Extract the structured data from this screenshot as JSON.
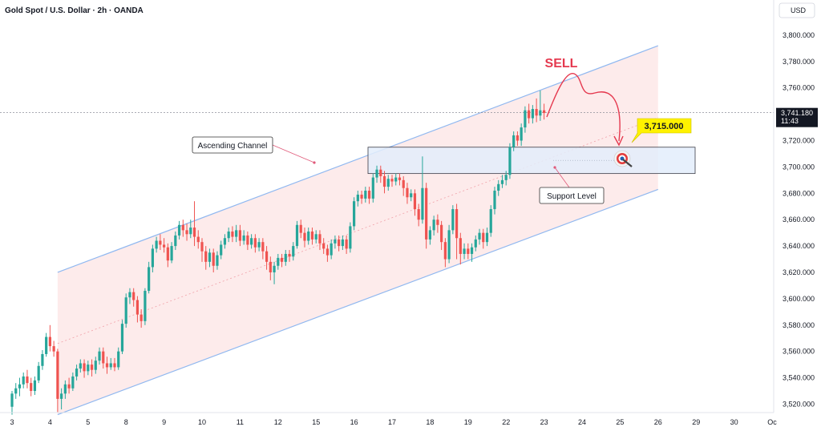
{
  "header": {
    "symbol_title": "Gold Spot / U.S. Dollar · 2h · OANDA",
    "currency": "USD"
  },
  "price_tag": {
    "price": "3,741.180",
    "countdown": "11:43"
  },
  "annotations": {
    "sell_label": "SELL",
    "target_label": "3,715.000",
    "channel_label": "Ascending Channel",
    "support_label": "Support Level"
  },
  "colors": {
    "up": "#26a69a",
    "down": "#ef5350",
    "channel_line": "#90b8f0",
    "channel_fill": "#fde8e8",
    "support_fill": "#e3edfb",
    "sell": "#e5394f",
    "target_bg": "#fff200"
  },
  "chart_data": {
    "type": "candlestick",
    "title": "Gold Spot / U.S. Dollar · 2h · OANDA",
    "ylabel": "USD",
    "ylim": [
      3510,
      3810
    ],
    "y_ticks": [
      3520,
      3540,
      3560,
      3580,
      3600,
      3620,
      3640,
      3660,
      3680,
      3700,
      3720,
      3740,
      3760,
      3780,
      3800
    ],
    "y_tick_labels": [
      "3,520.000",
      "3,540.000",
      "3,560.000",
      "3,580.000",
      "3,600.000",
      "3,620.000",
      "3,640.000",
      "3,660.000",
      "3,680.000",
      "3,700.000",
      "3,720.000",
      "3,740.000",
      "3,760.000",
      "3,780.000",
      "3,800.000"
    ],
    "x_ticks": [
      {
        "label": "3",
        "t": 0
      },
      {
        "label": "4",
        "t": 1
      },
      {
        "label": "5",
        "t": 2
      },
      {
        "label": "8",
        "t": 3
      },
      {
        "label": "9",
        "t": 4
      },
      {
        "label": "10",
        "t": 5
      },
      {
        "label": "11",
        "t": 6
      },
      {
        "label": "12",
        "t": 7
      },
      {
        "label": "15",
        "t": 8
      },
      {
        "label": "16",
        "t": 9
      },
      {
        "label": "17",
        "t": 10
      },
      {
        "label": "18",
        "t": 11
      },
      {
        "label": "19",
        "t": 12
      },
      {
        "label": "22",
        "t": 13
      },
      {
        "label": "23",
        "t": 14
      },
      {
        "label": "24",
        "t": 15
      },
      {
        "label": "25",
        "t": 16
      },
      {
        "label": "26",
        "t": 17
      },
      {
        "label": "29",
        "t": 18
      },
      {
        "label": "30",
        "t": 19
      },
      {
        "label": "Oc",
        "t": 20
      }
    ],
    "current_price": 3741.18,
    "target_price": 3715.0,
    "support_zone": [
      3695,
      3715
    ],
    "channel": {
      "upper": [
        {
          "t": 1.2,
          "y": 3620
        },
        {
          "t": 17,
          "y": 3792
        }
      ],
      "lower": [
        {
          "t": 1.2,
          "y": 3512
        },
        {
          "t": 17,
          "y": 3683
        }
      ]
    },
    "candles": [
      [
        0.0,
        3518,
        3528,
        3512,
        3530
      ],
      [
        0.1,
        3528,
        3532,
        3524,
        3536
      ],
      [
        0.2,
        3532,
        3535,
        3526,
        3540
      ],
      [
        0.3,
        3535,
        3541,
        3532,
        3544
      ],
      [
        0.4,
        3541,
        3536,
        3532,
        3546
      ],
      [
        0.5,
        3536,
        3530,
        3526,
        3540
      ],
      [
        0.6,
        3530,
        3538,
        3527,
        3541
      ],
      [
        0.7,
        3538,
        3549,
        3536,
        3552
      ],
      [
        0.8,
        3549,
        3558,
        3546,
        3561
      ],
      [
        0.9,
        3558,
        3571,
        3556,
        3574
      ],
      [
        1.0,
        3571,
        3564,
        3560,
        3580
      ],
      [
        1.1,
        3564,
        3560,
        3556,
        3568
      ],
      [
        1.2,
        3560,
        3524,
        3514,
        3562
      ],
      [
        1.3,
        3524,
        3528,
        3516,
        3532
      ],
      [
        1.4,
        3528,
        3535,
        3524,
        3538
      ],
      [
        1.5,
        3535,
        3532,
        3528,
        3540
      ],
      [
        1.6,
        3532,
        3541,
        3530,
        3544
      ],
      [
        1.7,
        3541,
        3547,
        3538,
        3550
      ],
      [
        1.8,
        3547,
        3551,
        3544,
        3554
      ],
      [
        1.9,
        3551,
        3545,
        3540,
        3554
      ],
      [
        2.0,
        3545,
        3550,
        3542,
        3553
      ],
      [
        2.1,
        3550,
        3546,
        3541,
        3554
      ],
      [
        2.2,
        3546,
        3553,
        3543,
        3556
      ],
      [
        2.3,
        3553,
        3560,
        3550,
        3563
      ],
      [
        2.4,
        3560,
        3551,
        3547,
        3563
      ],
      [
        2.5,
        3551,
        3548,
        3543,
        3556
      ],
      [
        2.6,
        3548,
        3551,
        3546,
        3555
      ],
      [
        2.7,
        3551,
        3548,
        3545,
        3555
      ],
      [
        2.8,
        3548,
        3560,
        3546,
        3563
      ],
      [
        2.9,
        3560,
        3581,
        3558,
        3584
      ],
      [
        3.0,
        3581,
        3601,
        3578,
        3604
      ],
      [
        3.1,
        3601,
        3605,
        3596,
        3608
      ],
      [
        3.2,
        3605,
        3599,
        3594,
        3608
      ],
      [
        3.3,
        3599,
        3588,
        3582,
        3602
      ],
      [
        3.4,
        3588,
        3583,
        3578,
        3592
      ],
      [
        3.5,
        3583,
        3606,
        3580,
        3608
      ],
      [
        3.6,
        3606,
        3624,
        3604,
        3628
      ],
      [
        3.7,
        3624,
        3638,
        3620,
        3641
      ],
      [
        3.8,
        3638,
        3644,
        3635,
        3647
      ],
      [
        3.9,
        3644,
        3641,
        3637,
        3649
      ],
      [
        4.0,
        3641,
        3639,
        3635,
        3646
      ],
      [
        4.1,
        3639,
        3629,
        3624,
        3642
      ],
      [
        4.2,
        3629,
        3640,
        3627,
        3643
      ],
      [
        4.3,
        3640,
        3648,
        3637,
        3651
      ],
      [
        4.4,
        3648,
        3656,
        3645,
        3659
      ],
      [
        4.5,
        3656,
        3652,
        3647,
        3660
      ],
      [
        4.6,
        3652,
        3649,
        3644,
        3657
      ],
      [
        4.7,
        3649,
        3654,
        3646,
        3660
      ],
      [
        4.8,
        3654,
        3647,
        3640,
        3674
      ],
      [
        4.9,
        3647,
        3643,
        3638,
        3652
      ],
      [
        5.0,
        3643,
        3636,
        3628,
        3646
      ],
      [
        5.1,
        3636,
        3628,
        3622,
        3640
      ],
      [
        5.2,
        3628,
        3635,
        3624,
        3638
      ],
      [
        5.3,
        3635,
        3625,
        3620,
        3638
      ],
      [
        5.4,
        3625,
        3633,
        3622,
        3636
      ],
      [
        5.5,
        3633,
        3641,
        3630,
        3644
      ],
      [
        5.6,
        3641,
        3646,
        3638,
        3649
      ],
      [
        5.7,
        3646,
        3651,
        3643,
        3654
      ],
      [
        5.8,
        3651,
        3647,
        3643,
        3655
      ],
      [
        5.9,
        3647,
        3652,
        3643,
        3656
      ],
      [
        6.0,
        3652,
        3644,
        3640,
        3656
      ],
      [
        6.1,
        3644,
        3648,
        3641,
        3652
      ],
      [
        6.2,
        3648,
        3641,
        3637,
        3651
      ],
      [
        6.3,
        3641,
        3646,
        3638,
        3649
      ],
      [
        6.4,
        3646,
        3639,
        3635,
        3649
      ],
      [
        6.5,
        3639,
        3643,
        3636,
        3646
      ],
      [
        6.6,
        3643,
        3636,
        3630,
        3646
      ],
      [
        6.7,
        3636,
        3628,
        3622,
        3640
      ],
      [
        6.8,
        3628,
        3620,
        3614,
        3632
      ],
      [
        6.9,
        3620,
        3625,
        3611,
        3628
      ],
      [
        7.0,
        3625,
        3631,
        3622,
        3634
      ],
      [
        7.1,
        3631,
        3628,
        3624,
        3634
      ],
      [
        7.2,
        3628,
        3634,
        3625,
        3637
      ],
      [
        7.3,
        3634,
        3632,
        3628,
        3637
      ],
      [
        7.4,
        3632,
        3640,
        3629,
        3643
      ],
      [
        7.5,
        3640,
        3656,
        3638,
        3659
      ],
      [
        7.6,
        3656,
        3650,
        3646,
        3660
      ],
      [
        7.7,
        3650,
        3644,
        3639,
        3654
      ],
      [
        7.8,
        3644,
        3651,
        3641,
        3654
      ],
      [
        7.9,
        3651,
        3645,
        3641,
        3654
      ],
      [
        8.0,
        3645,
        3649,
        3642,
        3652
      ],
      [
        8.1,
        3649,
        3642,
        3637,
        3652
      ],
      [
        8.2,
        3642,
        3638,
        3634,
        3646
      ],
      [
        8.3,
        3638,
        3633,
        3628,
        3641
      ],
      [
        8.4,
        3633,
        3642,
        3630,
        3645
      ],
      [
        8.5,
        3642,
        3645,
        3638,
        3648
      ],
      [
        8.6,
        3645,
        3640,
        3636,
        3648
      ],
      [
        8.7,
        3640,
        3645,
        3637,
        3648
      ],
      [
        8.8,
        3645,
        3638,
        3634,
        3648
      ],
      [
        8.9,
        3638,
        3655,
        3635,
        3658
      ],
      [
        9.0,
        3655,
        3674,
        3652,
        3677
      ],
      [
        9.1,
        3674,
        3679,
        3670,
        3682
      ],
      [
        9.2,
        3679,
        3676,
        3672,
        3682
      ],
      [
        9.3,
        3676,
        3682,
        3673,
        3685
      ],
      [
        9.4,
        3682,
        3676,
        3672,
        3685
      ],
      [
        9.5,
        3676,
        3692,
        3673,
        3695
      ],
      [
        9.6,
        3692,
        3698,
        3688,
        3701
      ],
      [
        9.7,
        3698,
        3693,
        3688,
        3701
      ],
      [
        9.8,
        3693,
        3685,
        3680,
        3697
      ],
      [
        9.9,
        3685,
        3691,
        3682,
        3694
      ],
      [
        10.0,
        3691,
        3689,
        3685,
        3694
      ],
      [
        10.1,
        3689,
        3692,
        3686,
        3695
      ],
      [
        10.2,
        3692,
        3690,
        3686,
        3695
      ],
      [
        10.3,
        3690,
        3684,
        3678,
        3693
      ],
      [
        10.4,
        3684,
        3677,
        3672,
        3688
      ],
      [
        10.5,
        3677,
        3680,
        3674,
        3683
      ],
      [
        10.6,
        3680,
        3668,
        3663,
        3683
      ],
      [
        10.7,
        3668,
        3660,
        3655,
        3672
      ],
      [
        10.8,
        3660,
        3684,
        3657,
        3708
      ],
      [
        10.9,
        3684,
        3645,
        3638,
        3688
      ],
      [
        11.0,
        3645,
        3652,
        3641,
        3655
      ],
      [
        11.1,
        3652,
        3660,
        3648,
        3663
      ],
      [
        11.2,
        3660,
        3656,
        3650,
        3664
      ],
      [
        11.3,
        3656,
        3643,
        3637,
        3659
      ],
      [
        11.4,
        3643,
        3630,
        3624,
        3646
      ],
      [
        11.5,
        3630,
        3652,
        3627,
        3656
      ],
      [
        11.6,
        3652,
        3668,
        3649,
        3671
      ],
      [
        11.7,
        3668,
        3646,
        3630,
        3672
      ],
      [
        11.8,
        3646,
        3634,
        3626,
        3650
      ],
      [
        11.9,
        3634,
        3638,
        3630,
        3642
      ],
      [
        12.0,
        3638,
        3634,
        3630,
        3642
      ],
      [
        12.1,
        3634,
        3639,
        3628,
        3642
      ],
      [
        12.2,
        3639,
        3645,
        3636,
        3648
      ],
      [
        12.3,
        3645,
        3650,
        3641,
        3653
      ],
      [
        12.4,
        3650,
        3643,
        3638,
        3653
      ],
      [
        12.5,
        3643,
        3650,
        3640,
        3654
      ],
      [
        12.6,
        3650,
        3668,
        3647,
        3671
      ],
      [
        12.7,
        3668,
        3682,
        3664,
        3685
      ],
      [
        12.8,
        3682,
        3687,
        3678,
        3690
      ],
      [
        12.9,
        3687,
        3690,
        3684,
        3694
      ],
      [
        13.0,
        3690,
        3694,
        3686,
        3697
      ],
      [
        13.1,
        3694,
        3715,
        3691,
        3718
      ],
      [
        13.2,
        3715,
        3724,
        3712,
        3727
      ],
      [
        13.3,
        3724,
        3720,
        3716,
        3727
      ],
      [
        13.4,
        3720,
        3730,
        3716,
        3733
      ],
      [
        13.5,
        3730,
        3743,
        3726,
        3746
      ],
      [
        13.6,
        3743,
        3737,
        3733,
        3748
      ],
      [
        13.7,
        3737,
        3744,
        3733,
        3747
      ],
      [
        13.8,
        3744,
        3739,
        3734,
        3752
      ],
      [
        13.9,
        3739,
        3743,
        3735,
        3758
      ],
      [
        14.0,
        3743,
        3741,
        3736,
        3748
      ]
    ]
  }
}
